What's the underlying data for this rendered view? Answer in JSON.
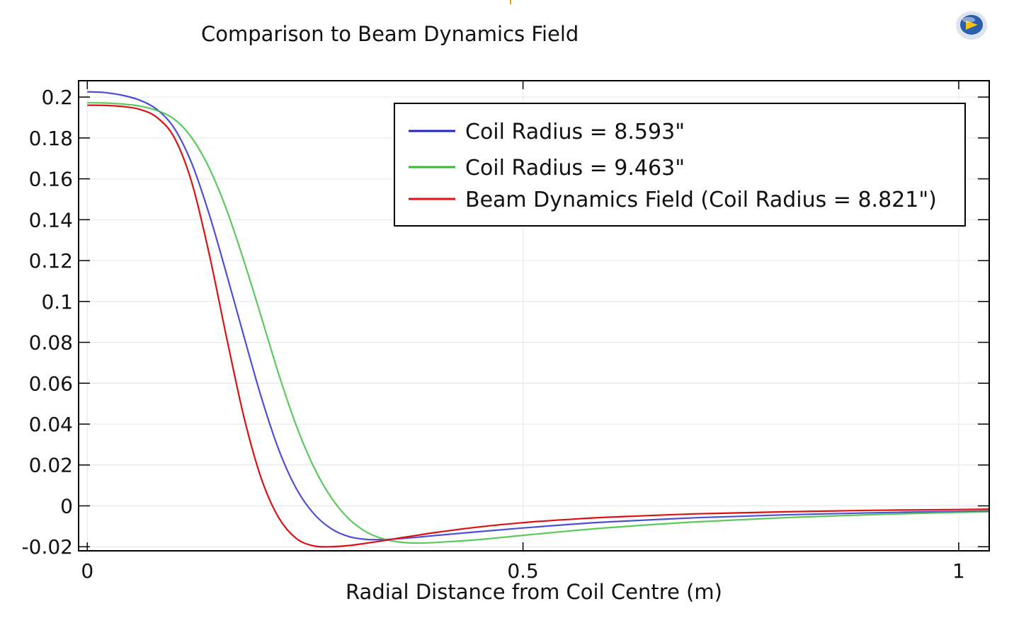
{
  "chart_data": {
    "type": "line",
    "title": "Comparison to Beam Dynamics Field",
    "xlabel": "Radial Distance from Coil Centre (m)",
    "ylabel": "",
    "xlim": [
      -0.01,
      1.035
    ],
    "ylim": [
      -0.022,
      0.208
    ],
    "x_ticks": [
      0,
      0.5,
      1
    ],
    "x_tick_labels": [
      "0",
      "0.5",
      "1"
    ],
    "y_ticks": [
      0.2,
      0.18,
      0.16,
      0.14,
      0.12,
      0.1,
      0.08,
      0.06,
      0.04,
      0.02,
      0,
      -0.02
    ],
    "y_tick_labels": [
      "0.2",
      "0.18",
      "0.16",
      "0.14",
      "0.12",
      "0.1",
      "0.08",
      "0.06",
      "0.04",
      "0.02",
      "0",
      "-0.02"
    ],
    "grid": true,
    "legend_position": "top-right",
    "series": [
      {
        "name": "Coil Radius = 8.593\"",
        "color": "#2222cc",
        "x": [
          0,
          0.02,
          0.04,
          0.06,
          0.08,
          0.1,
          0.12,
          0.14,
          0.16,
          0.18,
          0.2,
          0.22,
          0.24,
          0.26,
          0.28,
          0.3,
          0.32,
          0.34,
          0.36,
          0.38,
          0.4,
          0.45,
          0.5,
          0.55,
          0.6,
          0.7,
          0.8,
          0.9,
          1.0,
          1.035
        ],
        "y": [
          0.2026,
          0.2022,
          0.2009,
          0.1985,
          0.1939,
          0.1846,
          0.1674,
          0.1425,
          0.1131,
          0.0825,
          0.0527,
          0.0272,
          0.0083,
          -0.0039,
          -0.0112,
          -0.015,
          -0.0164,
          -0.0165,
          -0.016,
          -0.0153,
          -0.0145,
          -0.0126,
          -0.0108,
          -0.0092,
          -0.0078,
          -0.0058,
          -0.0044,
          -0.0034,
          -0.0027,
          -0.0025
        ]
      },
      {
        "name": "Coil Radius = 9.463\"",
        "color": "#33bb33",
        "x": [
          0,
          0.02,
          0.04,
          0.06,
          0.08,
          0.1,
          0.12,
          0.14,
          0.16,
          0.18,
          0.2,
          0.22,
          0.24,
          0.26,
          0.28,
          0.3,
          0.32,
          0.34,
          0.36,
          0.38,
          0.4,
          0.45,
          0.5,
          0.55,
          0.6,
          0.7,
          0.8,
          0.9,
          1.0,
          1.035
        ],
        "y": [
          0.1972,
          0.1971,
          0.1966,
          0.1956,
          0.1934,
          0.1891,
          0.18,
          0.1652,
          0.1447,
          0.1195,
          0.092,
          0.064,
          0.039,
          0.0189,
          0.004,
          -0.0063,
          -0.0127,
          -0.0162,
          -0.0178,
          -0.0182,
          -0.0179,
          -0.0165,
          -0.0144,
          -0.0124,
          -0.0106,
          -0.0078,
          -0.0058,
          -0.0043,
          -0.0032,
          -0.0029
        ]
      },
      {
        "name": "Beam Dynamics Field (Coil Radius = 8.821\")",
        "color": "#dd1111",
        "x": [
          0,
          0.02,
          0.04,
          0.06,
          0.08,
          0.1,
          0.12,
          0.14,
          0.16,
          0.18,
          0.2,
          0.22,
          0.24,
          0.26,
          0.28,
          0.3,
          0.32,
          0.34,
          0.36,
          0.38,
          0.4,
          0.45,
          0.5,
          0.55,
          0.6,
          0.7,
          0.8,
          0.9,
          1.0,
          1.035
        ],
        "y": [
          0.196,
          0.1959,
          0.1954,
          0.194,
          0.19,
          0.18,
          0.158,
          0.123,
          0.082,
          0.043,
          0.013,
          -0.006,
          -0.016,
          -0.0196,
          -0.02,
          -0.0194,
          -0.0183,
          -0.017,
          -0.0156,
          -0.0143,
          -0.013,
          -0.0103,
          -0.0082,
          -0.0067,
          -0.0055,
          -0.0039,
          -0.0029,
          -0.0022,
          -0.0018,
          -0.0016
        ]
      }
    ]
  },
  "logo": {
    "icon": "comsol-logo-icon"
  }
}
